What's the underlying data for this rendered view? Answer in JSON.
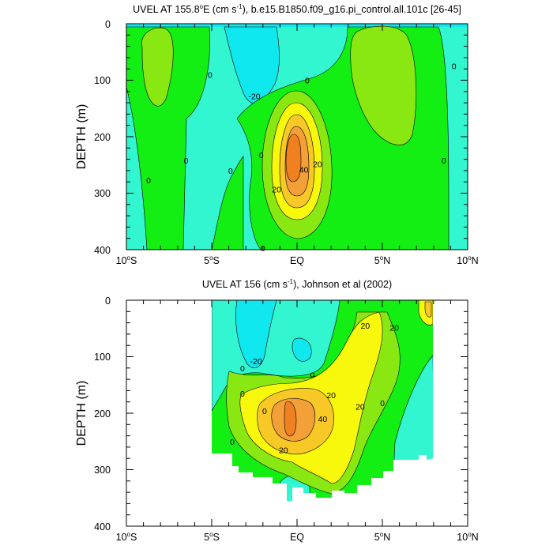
{
  "colors": {
    "band_neg20": "#10e8f0",
    "band_neg10": "#32f6cf",
    "band_0": "#13ee13",
    "band_10": "#8ae812",
    "band_20": "#f8f80c",
    "band_30": "#f8c826",
    "band_40": "#f4a038",
    "band_50": "#f08020",
    "contour_line": "#000000"
  },
  "chart_data": [
    {
      "type": "heatmap",
      "title": "UVEL AT 155.8°E (cm s⁻¹), b.e15.B1850.f09_g16.pi_control.all.101c [26-45]",
      "title_parts": {
        "pre": "UVEL AT 155.8",
        "sup1": "o",
        "mid": "E (cm s",
        "sup2": "-1",
        "post": "), b.e15.B1850.f09_g16.pi_control.all.101c [26-45]"
      },
      "ylabel": "DEPTH (m)",
      "y_ticks": [
        "0",
        "100",
        "200",
        "300",
        "400"
      ],
      "ylim": [
        0,
        400
      ],
      "x_ticks": [
        "10°S",
        "5°S",
        "EQ",
        "5°N",
        "10°N"
      ],
      "xlim": [
        -10,
        10
      ],
      "contour_interval": 10,
      "contour_labels": [
        {
          "text": "0",
          "lon": -5.1,
          "depth": 90
        },
        {
          "text": "-20",
          "lon": -2.5,
          "depth": 128
        },
        {
          "text": "0",
          "lon": 0.6,
          "depth": 100
        },
        {
          "text": "0",
          "lon": 9.2,
          "depth": 75
        },
        {
          "text": "0",
          "lon": -6.5,
          "depth": 242
        },
        {
          "text": "0",
          "lon": -3.9,
          "depth": 260
        },
        {
          "text": "0",
          "lon": -8.7,
          "depth": 277
        },
        {
          "text": "0",
          "lon": -2.1,
          "depth": 232
        },
        {
          "text": "0",
          "lon": 8.6,
          "depth": 242
        },
        {
          "text": "40",
          "lon": 0.4,
          "depth": 258
        },
        {
          "text": "20",
          "lon": 1.2,
          "depth": 248
        },
        {
          "text": "20",
          "lon": -1.2,
          "depth": 293
        },
        {
          "text": "0",
          "lon": -2.0,
          "depth": 397
        }
      ]
    },
    {
      "type": "heatmap",
      "title": "UVEL AT 156 (cm s⁻¹), Johnson et al (2002)",
      "title_parts": {
        "pre": "UVEL AT 156 (cm s",
        "sup1": "",
        "mid": "",
        "sup2": "-1",
        "post": "), Johnson et al (2002)"
      },
      "ylabel": "DEPTH (m)",
      "y_ticks": [
        "0",
        "100",
        "200",
        "300",
        "400"
      ],
      "ylim": [
        0,
        400
      ],
      "x_ticks": [
        "10°S",
        "5°S",
        "EQ",
        "5°N",
        "10°N"
      ],
      "xlim": [
        -10,
        10
      ],
      "contour_interval": 10,
      "contour_labels": [
        {
          "text": "-20",
          "lon": -2.4,
          "depth": 108
        },
        {
          "text": "0",
          "lon": -3.2,
          "depth": 120
        },
        {
          "text": "0",
          "lon": 0.9,
          "depth": 132
        },
        {
          "text": "20",
          "lon": 4.0,
          "depth": 45
        },
        {
          "text": "20",
          "lon": 5.7,
          "depth": 48
        },
        {
          "text": "20",
          "lon": 2.0,
          "depth": 168
        },
        {
          "text": "20",
          "lon": 3.7,
          "depth": 188
        },
        {
          "text": "0",
          "lon": 5.0,
          "depth": 182
        },
        {
          "text": "0",
          "lon": -1.9,
          "depth": 196
        },
        {
          "text": "40",
          "lon": 1.5,
          "depth": 210
        },
        {
          "text": "20",
          "lon": -0.8,
          "depth": 265
        },
        {
          "text": "0",
          "lon": -3.8,
          "depth": 250
        },
        {
          "text": "0",
          "lon": -3.2,
          "depth": 165
        }
      ]
    }
  ]
}
